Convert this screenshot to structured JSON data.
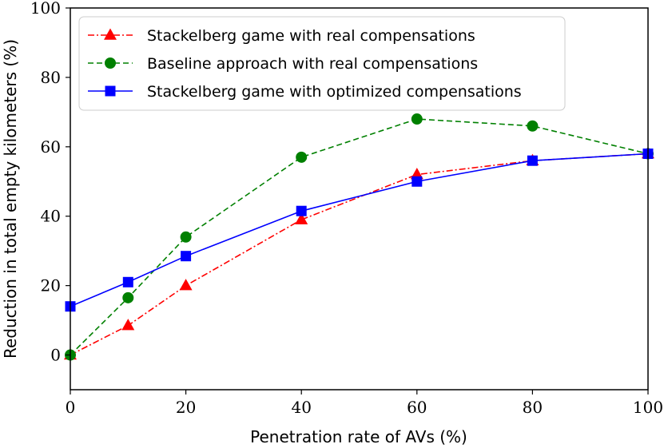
{
  "chart_data": {
    "type": "line",
    "title": "",
    "xlabel": "Penetration rate of AVs (%)",
    "ylabel": "Reduction in total empty kilometers (%)",
    "xlim": [
      0,
      100
    ],
    "ylim": [
      -10,
      100
    ],
    "xticks": [
      0,
      20,
      40,
      60,
      80,
      100
    ],
    "yticks": [
      0,
      20,
      40,
      60,
      80,
      100
    ],
    "grid": false,
    "legend_position": "top-left",
    "series": [
      {
        "name": "Stackelberg game with real compensations",
        "color": "#ff0000",
        "line_style": "dashdot",
        "marker": "triangle",
        "x": [
          0,
          10,
          20,
          40,
          60,
          80,
          100
        ],
        "y": [
          0,
          8.5,
          20,
          39,
          52,
          56,
          58
        ]
      },
      {
        "name": "Baseline approach with real compensations",
        "color": "#008000",
        "line_style": "dashed",
        "marker": "circle",
        "x": [
          0,
          10,
          20,
          40,
          60,
          80,
          100
        ],
        "y": [
          0,
          16.5,
          34,
          57,
          68,
          66,
          58
        ]
      },
      {
        "name": "Stackelberg game with optimized compensations",
        "color": "#0000ff",
        "line_style": "solid",
        "marker": "square",
        "x": [
          0,
          10,
          20,
          40,
          60,
          80,
          100
        ],
        "y": [
          14,
          21,
          28.5,
          41.5,
          50,
          56,
          58
        ]
      }
    ]
  }
}
